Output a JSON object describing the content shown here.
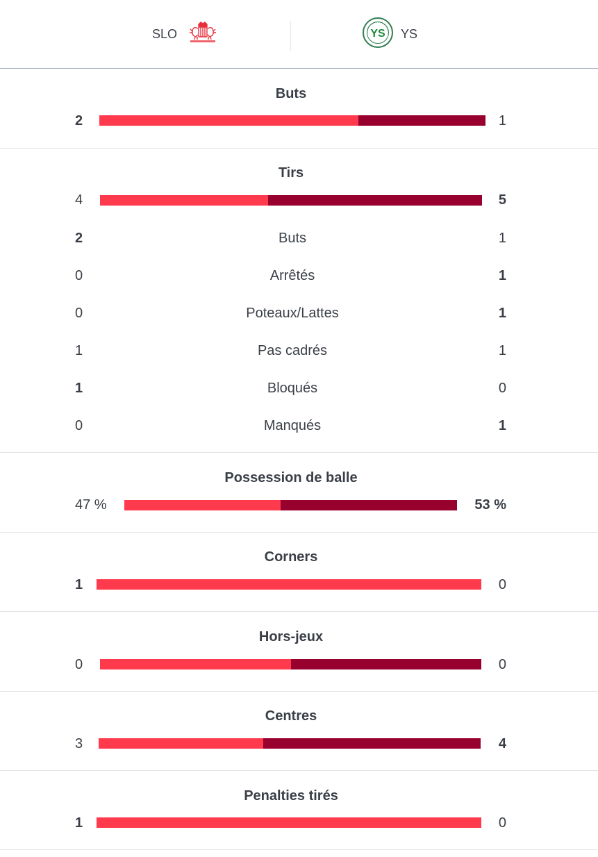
{
  "header": {
    "home": {
      "name": "SLO",
      "logo_icon": "slo-crest-icon"
    },
    "away": {
      "name": "YS",
      "logo_icon": "ys-crest-icon"
    }
  },
  "colors": {
    "home": "#ff3a4d",
    "away": "#98002e"
  },
  "stats": [
    {
      "key": "goals",
      "title": "Buts",
      "home": "2",
      "away": "1",
      "home_share": 0.67
    },
    {
      "key": "shots",
      "title": "Tirs",
      "home": "4",
      "away": "5",
      "home_share": 0.44,
      "breakdown": [
        {
          "label": "Buts",
          "home": "2",
          "away": "1"
        },
        {
          "label": "Arrêtés",
          "home": "0",
          "away": "1"
        },
        {
          "label": "Poteaux/Lattes",
          "home": "0",
          "away": "1"
        },
        {
          "label": "Pas cadrés",
          "home": "1",
          "away": "1"
        },
        {
          "label": "Bloqués",
          "home": "1",
          "away": "0"
        },
        {
          "label": "Manqués",
          "home": "0",
          "away": "1"
        }
      ]
    },
    {
      "key": "possession",
      "title": "Possession de balle",
      "home": "47 %",
      "away": "53 %",
      "home_share": 0.47
    },
    {
      "key": "corners",
      "title": "Corners",
      "home": "1",
      "away": "0",
      "home_share": 1.0
    },
    {
      "key": "offsides",
      "title": "Hors-jeux",
      "home": "0",
      "away": "0",
      "home_share": 0.5
    },
    {
      "key": "crosses",
      "title": "Centres",
      "home": "3",
      "away": "4",
      "home_share": 0.43
    },
    {
      "key": "penalties",
      "title": "Penalties tirés",
      "home": "1",
      "away": "0",
      "home_share": 1.0
    }
  ]
}
